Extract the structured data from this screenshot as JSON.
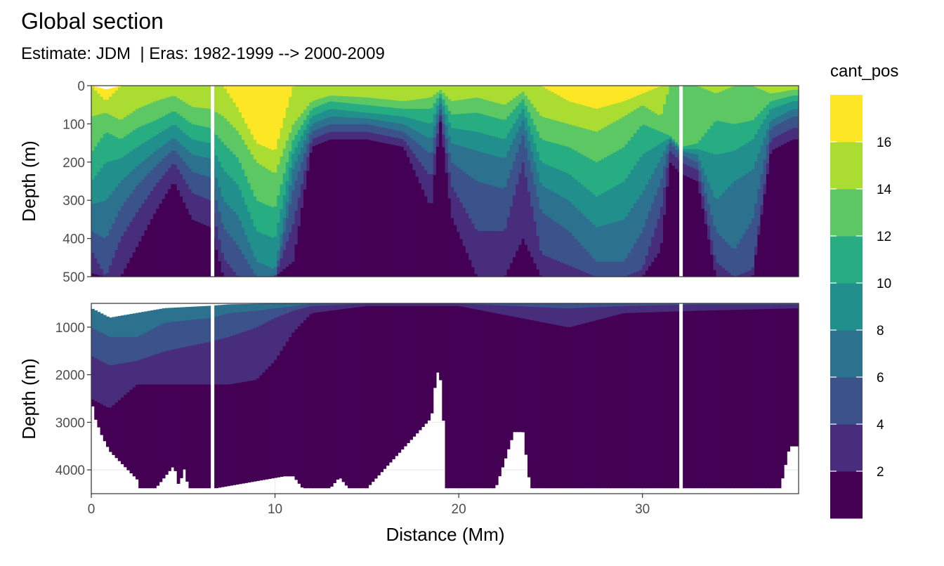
{
  "chart_data": {
    "type": "heatmap",
    "title": "Global section",
    "subtitle": "Estimate: JDM  | Eras: 1982-1999 --> 2000-2009",
    "xlabel": "Distance (Mm)",
    "ylabel": "Depth (m)",
    "xlim": [
      0,
      38.5
    ],
    "x_ticks": [
      "0",
      "10",
      "20",
      "30"
    ],
    "x_tick_values": [
      0,
      10,
      20,
      30
    ],
    "grid": "on",
    "legend_placement": "right",
    "legend": {
      "title": "cant_pos",
      "labels": [
        "2",
        "4",
        "6",
        "8",
        "10",
        "12",
        "14",
        "16"
      ],
      "breaks": [
        2,
        4,
        6,
        8,
        10,
        12,
        14,
        16
      ],
      "bins": [
        [
          0,
          2
        ],
        [
          2,
          4
        ],
        [
          4,
          6
        ],
        [
          6,
          8
        ],
        [
          8,
          10
        ],
        [
          10,
          12
        ],
        [
          12,
          14
        ],
        [
          14,
          16
        ],
        [
          16,
          18
        ]
      ],
      "colors": [
        "#440154",
        "#472D7B",
        "#3B528B",
        "#2C728E",
        "#21908C",
        "#27AD81",
        "#5DC863",
        "#AADC32",
        "#FDE725"
      ]
    },
    "panels": [
      {
        "name": "upper",
        "ylim": [
          500,
          0
        ],
        "y_ticks": [
          "0",
          "100",
          "200",
          "300",
          "400",
          "500"
        ],
        "y_tick_values": [
          0,
          100,
          200,
          300,
          400,
          500
        ]
      },
      {
        "name": "lower",
        "ylim": [
          4500,
          500
        ],
        "y_ticks": [
          "1000",
          "2000",
          "3000",
          "4000"
        ],
        "y_tick_values": [
          1000,
          2000,
          3000,
          4000
        ]
      }
    ],
    "section_breaks_x": [
      6.6,
      32.1
    ],
    "profiles_upper_band_starts": {
      "x": [
        0,
        0.8,
        1.6,
        2.5,
        3.5,
        4.5,
        5.5,
        6.5,
        7.2,
        8,
        9,
        10,
        11,
        12,
        13,
        15,
        17,
        18.5,
        19,
        19.6,
        21,
        22.5,
        23.5,
        24.5,
        26,
        27.5,
        29,
        30,
        31,
        31.5,
        32.1,
        33,
        34,
        35,
        36,
        37,
        38.2
      ],
      "starts": [
        [
          490,
          430,
          380,
          310,
          250,
          175,
          80,
          0,
          0
        ],
        [
          500,
          500,
          400,
          300,
          200,
          120,
          70,
          40,
          10
        ],
        [
          500,
          400,
          320,
          250,
          190,
          140,
          90,
          0,
          0
        ],
        [
          420,
          330,
          260,
          210,
          160,
          110,
          60,
          0,
          0
        ],
        [
          330,
          260,
          210,
          170,
          130,
          90,
          40,
          0,
          0
        ],
        [
          250,
          200,
          165,
          135,
          100,
          65,
          25,
          0,
          0
        ],
        [
          350,
          280,
          225,
          180,
          140,
          100,
          55,
          0,
          0
        ],
        [
          370,
          300,
          240,
          190,
          150,
          110,
          60,
          0,
          0
        ],
        [
          500,
          450,
          370,
          300,
          220,
          150,
          80,
          0,
          0
        ],
        [
          500,
          500,
          420,
          340,
          260,
          190,
          120,
          60,
          0
        ],
        [
          500,
          500,
          500,
          460,
          380,
          300,
          200,
          150,
          0
        ],
        [
          500,
          500,
          500,
          480,
          400,
          320,
          230,
          170,
          0
        ],
        [
          460,
          360,
          270,
          215,
          175,
          140,
          100,
          0,
          0
        ],
        [
          160,
          140,
          120,
          100,
          80,
          60,
          40,
          0,
          0
        ],
        [
          140,
          120,
          100,
          80,
          60,
          40,
          25,
          0,
          0
        ],
        [
          140,
          120,
          100,
          85,
          70,
          50,
          30,
          0,
          0
        ],
        [
          160,
          140,
          120,
          100,
          80,
          60,
          40,
          0,
          0
        ],
        [
          320,
          240,
          180,
          140,
          100,
          60,
          30,
          0,
          0
        ],
        [
          90,
          75,
          60,
          45,
          30,
          20,
          10,
          0,
          0
        ],
        [
          340,
          260,
          200,
          150,
          110,
          75,
          40,
          0,
          0
        ],
        [
          500,
          380,
          250,
          170,
          120,
          70,
          30,
          0,
          0
        ],
        [
          500,
          380,
          270,
          190,
          140,
          90,
          50,
          0,
          0
        ],
        [
          400,
          200,
          130,
          90,
          60,
          35,
          15,
          0,
          0
        ],
        [
          500,
          440,
          330,
          260,
          200,
          140,
          80,
          0,
          0
        ],
        [
          500,
          470,
          380,
          300,
          230,
          160,
          100,
          40,
          0
        ],
        [
          500,
          500,
          460,
          370,
          290,
          200,
          120,
          60,
          0
        ],
        [
          500,
          500,
          460,
          350,
          250,
          160,
          80,
          40,
          0
        ],
        [
          500,
          480,
          380,
          280,
          180,
          100,
          50,
          20,
          0
        ],
        [
          430,
          330,
          250,
          190,
          150,
          120,
          80,
          0,
          0
        ],
        [
          200,
          170,
          150,
          140,
          135,
          130,
          0,
          0,
          0
        ],
        [
          230,
          200,
          180,
          170,
          165,
          160,
          0,
          0,
          0
        ],
        [
          250,
          220,
          200,
          180,
          165,
          150,
          0,
          0,
          0
        ],
        [
          500,
          460,
          380,
          300,
          180,
          90,
          20,
          0,
          0
        ],
        [
          500,
          500,
          430,
          250,
          170,
          100,
          0,
          0,
          0
        ],
        [
          500,
          480,
          350,
          220,
          140,
          90,
          0,
          0,
          0
        ],
        [
          170,
          140,
          110,
          90,
          60,
          40,
          20,
          0,
          0
        ],
        [
          140,
          110,
          80,
          60,
          40,
          25,
          10,
          0,
          0
        ]
      ]
    },
    "profiles_lower_band_starts": {
      "x": [
        0,
        1,
        2.5,
        4,
        6.5,
        7.5,
        9,
        10,
        11,
        12,
        15,
        20,
        26,
        29,
        33,
        38.2
      ],
      "starts": [
        [
          2500,
          1600,
          1000,
          600
        ],
        [
          2700,
          1800,
          1200,
          800
        ],
        [
          2200,
          1700,
          1200,
          700
        ],
        [
          2200,
          1500,
          900,
          600
        ],
        [
          2200,
          1300,
          800,
          550
        ],
        [
          2200,
          1200,
          700,
          520
        ],
        [
          2100,
          1000,
          650,
          510
        ],
        [
          1700,
          800,
          600,
          505
        ],
        [
          1100,
          650,
          550,
          500
        ],
        [
          700,
          550,
          500,
          500
        ],
        [
          550,
          500,
          500,
          500
        ],
        [
          550,
          500,
          500,
          500
        ],
        [
          1000,
          600,
          500,
          500
        ],
        [
          700,
          550,
          500,
          500
        ],
        [
          650,
          520,
          500,
          500
        ],
        [
          600,
          520,
          500,
          500
        ]
      ]
    },
    "seafloor_depth": {
      "x": [
        0,
        0.2,
        0.6,
        1,
        1.5,
        2,
        2.5,
        2.6,
        3.5,
        4.5,
        4.8,
        5,
        5.3,
        5.5,
        6,
        6.5,
        6.8,
        10.5,
        11,
        11.5,
        12,
        12.5,
        13,
        13.5,
        14,
        15,
        18.5,
        18.8,
        19.1,
        19.3,
        20,
        22,
        22.5,
        23,
        23.5,
        23.9,
        24.2,
        30,
        37.5,
        38,
        38.2
      ],
      "depth": [
        2500,
        2900,
        3300,
        3600,
        3800,
        4000,
        4200,
        4380,
        4380,
        3900,
        4400,
        3900,
        4380,
        4380,
        4380,
        4380,
        4380,
        4130,
        4130,
        4380,
        4380,
        4380,
        4380,
        4150,
        4380,
        4380,
        2900,
        1900,
        2200,
        4380,
        4380,
        4380,
        3800,
        3200,
        3200,
        4380,
        4380,
        4380,
        4380,
        3500,
        3500
      ]
    }
  }
}
